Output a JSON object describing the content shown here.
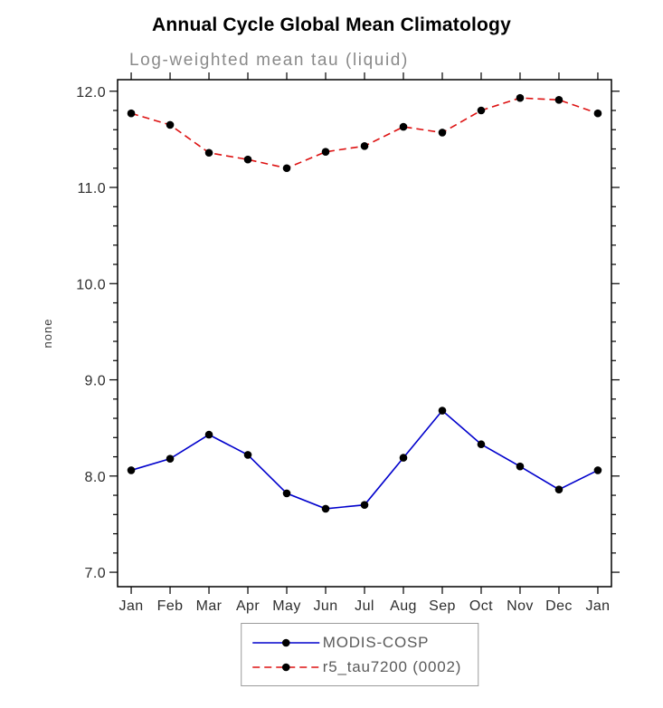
{
  "chart_data": {
    "type": "line",
    "title": "Annual Cycle Global Mean Climatology",
    "subtitle": "Log-weighted mean tau (liquid)",
    "xlabel": "",
    "ylabel": "none",
    "categories": [
      "Jan",
      "Feb",
      "Mar",
      "Apr",
      "May",
      "Jun",
      "Jul",
      "Aug",
      "Sep",
      "Oct",
      "Nov",
      "Dec",
      "Jan"
    ],
    "ylim": [
      6.85,
      12.12
    ],
    "yticks": [
      7.0,
      8.0,
      9.0,
      10.0,
      11.0,
      12.0
    ],
    "ytick_labels": [
      "7.0",
      "8.0",
      "9.0",
      "10.0",
      "11.0",
      "12.0"
    ],
    "y_minor_step": 0.2,
    "grid": false,
    "legend_position": "bottom",
    "frame_color": "#000000",
    "marker_color": "#000000",
    "series": [
      {
        "name": "MODIS-COSP",
        "color": "#0000cc",
        "dash": "solid",
        "marker": "circle",
        "values": [
          8.06,
          8.18,
          8.43,
          8.22,
          7.82,
          7.66,
          7.7,
          8.19,
          8.68,
          8.33,
          8.1,
          7.86,
          8.06
        ]
      },
      {
        "name": "r5_tau7200 (0002)",
        "color": "#dd1111",
        "dash": "dashed",
        "marker": "circle",
        "values": [
          11.77,
          11.65,
          11.36,
          11.29,
          11.2,
          11.37,
          11.43,
          11.63,
          11.57,
          11.8,
          11.93,
          11.91,
          11.77
        ]
      }
    ]
  }
}
